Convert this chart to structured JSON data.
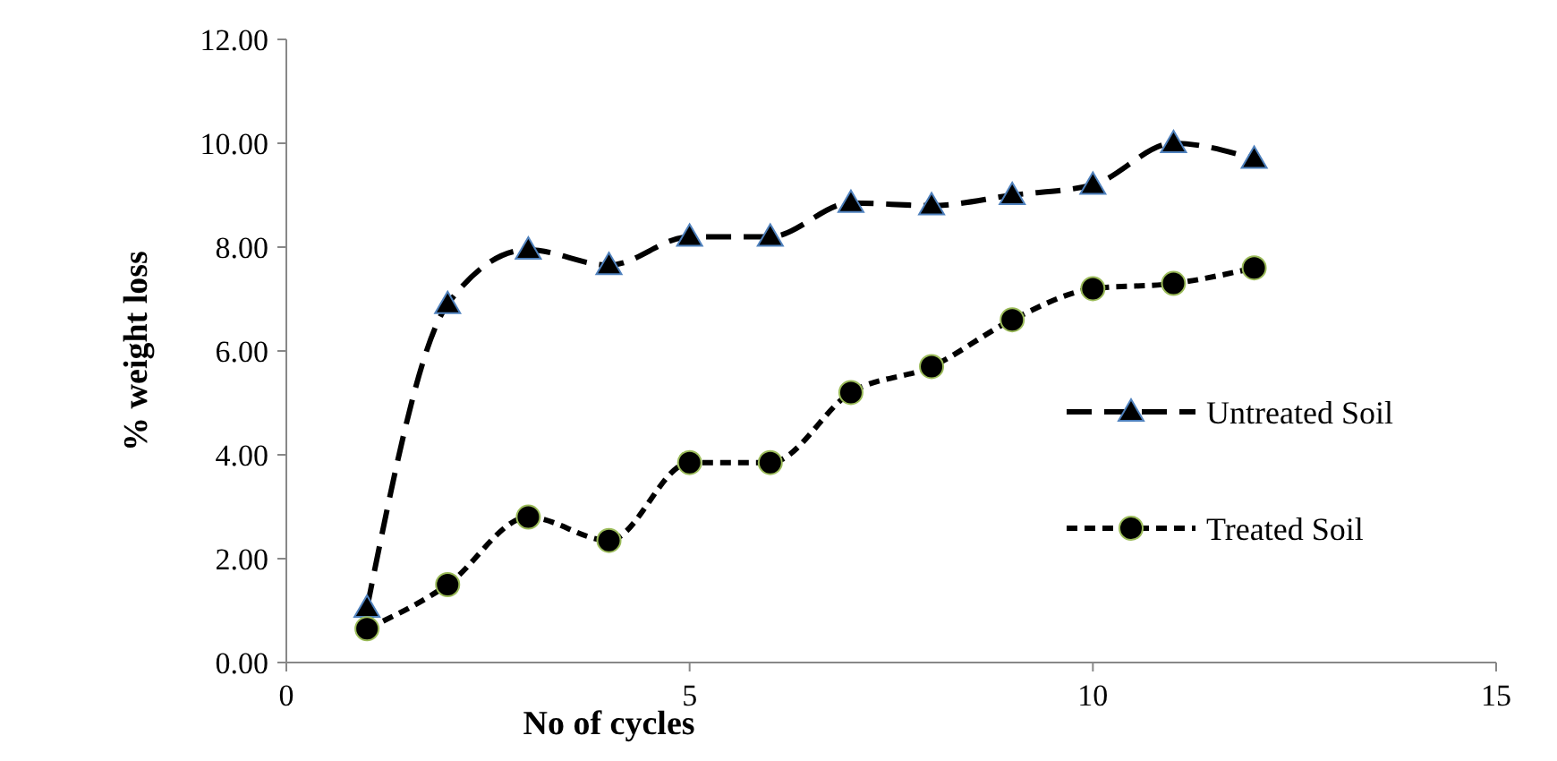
{
  "chart_data": {
    "type": "line",
    "xlabel": "No of cycles",
    "ylabel": "% weight loss",
    "x": [
      1,
      2,
      3,
      4,
      5,
      6,
      7,
      8,
      9,
      10,
      11,
      12
    ],
    "series": [
      {
        "name": "Untreated Soil",
        "color": "#000000",
        "marker": "triangle",
        "line_style": "dashed",
        "values": [
          1.05,
          6.9,
          7.95,
          7.65,
          8.2,
          8.2,
          8.85,
          8.8,
          9.0,
          9.2,
          10.0,
          9.7
        ]
      },
      {
        "name": "Treated Soil",
        "color": "#000000",
        "marker": "circle",
        "line_style": "dotted",
        "values": [
          0.65,
          1.5,
          2.8,
          2.35,
          3.85,
          3.85,
          5.2,
          5.7,
          6.6,
          7.2,
          7.3,
          7.6
        ]
      }
    ],
    "xlim": [
      0,
      15
    ],
    "xticks": [
      0,
      5,
      10,
      15
    ],
    "ylim": [
      0,
      12
    ],
    "yticks": [
      {
        "value": 0,
        "label": "0.00"
      },
      {
        "value": 2,
        "label": "2.00"
      },
      {
        "value": 4,
        "label": "4.00"
      },
      {
        "value": 6,
        "label": "6.00"
      },
      {
        "value": 8,
        "label": "8.00"
      },
      {
        "value": 10,
        "label": "10.00"
      },
      {
        "value": 12,
        "label": "12.00"
      }
    ],
    "grid": false,
    "legend": "bottom right"
  }
}
